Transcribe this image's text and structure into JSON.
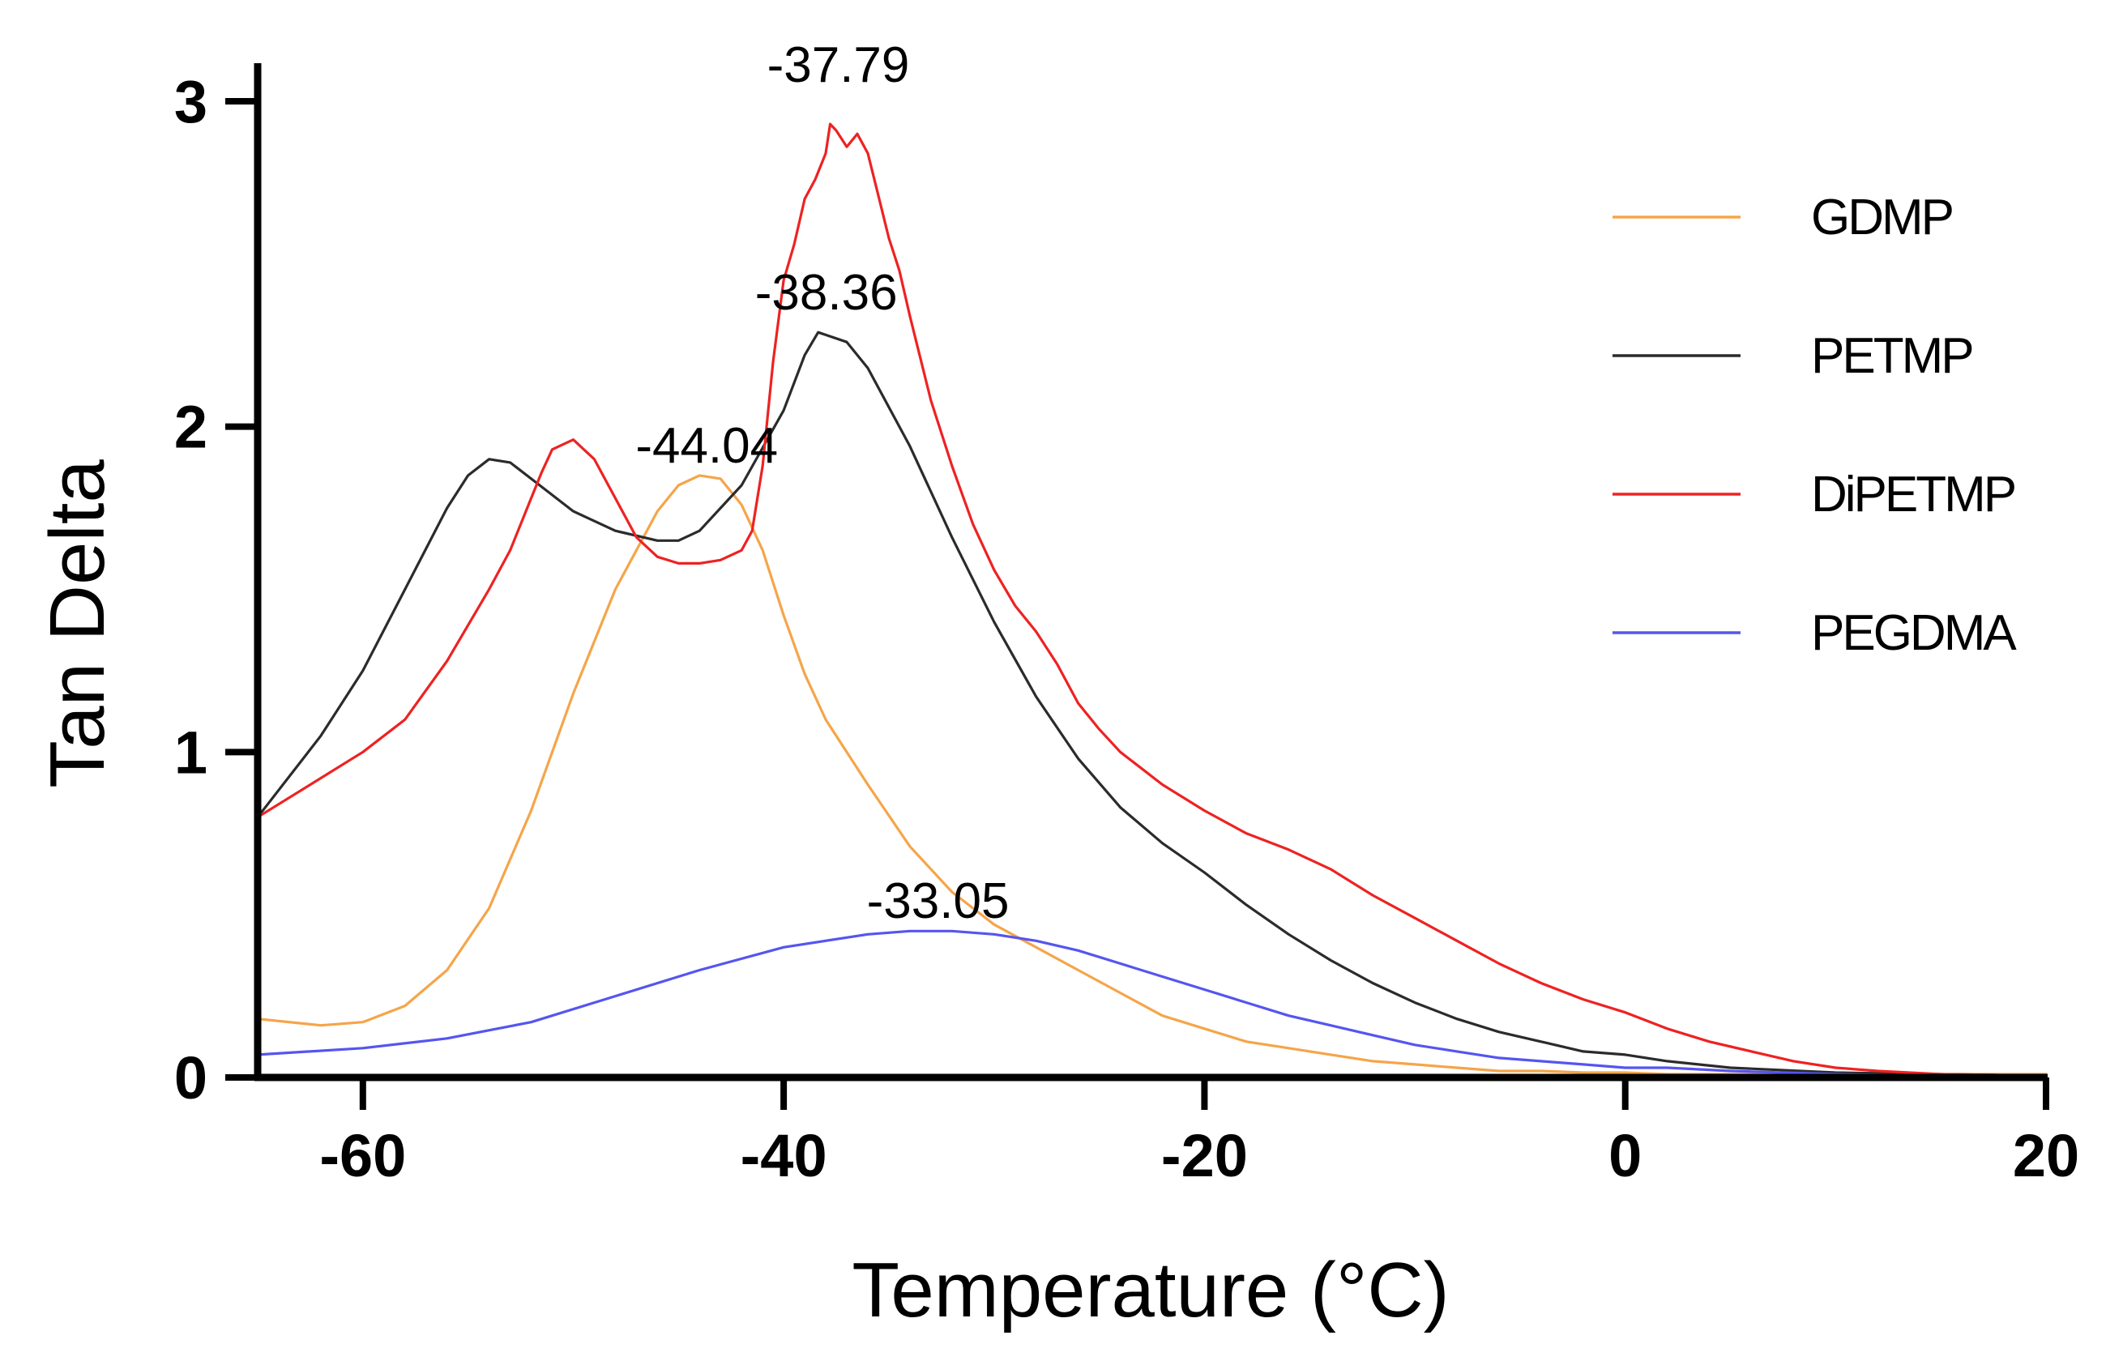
{
  "chart_data": {
    "type": "line",
    "title": "",
    "xlabel": "Temperature (°C)",
    "ylabel": "Tan Delta",
    "xlim": [
      -65,
      20
    ],
    "ylim": [
      0,
      3.1
    ],
    "xticks": [
      -60,
      -40,
      -20,
      0,
      20
    ],
    "xtick_labels": [
      "-60",
      "-40",
      "-20",
      "0",
      "20"
    ],
    "yticks": [
      0,
      1,
      2,
      3
    ],
    "ytick_labels": [
      "0",
      "1",
      "2",
      "3"
    ],
    "grid": false,
    "legend_position": "right",
    "series": [
      {
        "name": "GDMP",
        "color": "#f5a54a",
        "x": [
          -65,
          -62,
          -60,
          -58,
          -56,
          -54,
          -52,
          -50,
          -48,
          -47,
          -46,
          -45,
          -44,
          -43,
          -42,
          -41,
          -40,
          -39,
          -38,
          -36,
          -34,
          -32,
          -30,
          -28,
          -26,
          -24,
          -22,
          -20,
          -18,
          -16,
          -14,
          -12,
          -10,
          -8,
          -6,
          -4,
          -2,
          0,
          2,
          5,
          10,
          15,
          20
        ],
        "y": [
          0.18,
          0.16,
          0.17,
          0.22,
          0.33,
          0.52,
          0.82,
          1.18,
          1.5,
          1.62,
          1.74,
          1.82,
          1.85,
          1.84,
          1.76,
          1.62,
          1.42,
          1.24,
          1.1,
          0.9,
          0.71,
          0.57,
          0.47,
          0.4,
          0.33,
          0.26,
          0.19,
          0.15,
          0.11,
          0.09,
          0.07,
          0.05,
          0.04,
          0.03,
          0.02,
          0.02,
          0.015,
          0.015,
          0.01,
          0.01,
          0.01,
          0.01,
          0.01
        ]
      },
      {
        "name": "PETMP",
        "color": "#2b2b2b",
        "x": [
          -65,
          -62,
          -60,
          -58,
          -56,
          -55,
          -54,
          -53,
          -52,
          -50,
          -48,
          -46,
          -45,
          -44,
          -42,
          -40,
          -39,
          -38.36,
          -37,
          -36,
          -34,
          -32,
          -30,
          -28,
          -26,
          -24,
          -22,
          -20,
          -18,
          -16,
          -14,
          -12,
          -10,
          -8,
          -6,
          -4,
          -2,
          0,
          2,
          5,
          10,
          15,
          20
        ],
        "y": [
          0.8,
          1.05,
          1.25,
          1.5,
          1.75,
          1.85,
          1.9,
          1.89,
          1.84,
          1.74,
          1.68,
          1.65,
          1.65,
          1.68,
          1.82,
          2.05,
          2.22,
          2.29,
          2.26,
          2.18,
          1.94,
          1.66,
          1.4,
          1.17,
          0.98,
          0.83,
          0.72,
          0.63,
          0.53,
          0.44,
          0.36,
          0.29,
          0.23,
          0.18,
          0.14,
          0.11,
          0.08,
          0.07,
          0.05,
          0.03,
          0.015,
          0.01,
          0.005
        ]
      },
      {
        "name": "DiPETMP",
        "color": "#ee2222",
        "x": [
          -65,
          -62,
          -60,
          -58,
          -56,
          -54,
          -53,
          -52,
          -51.5,
          -51,
          -50,
          -49,
          -48,
          -47,
          -46,
          -45,
          -44,
          -43,
          -42,
          -41.5,
          -41,
          -40.5,
          -40,
          -39.5,
          -39,
          -38.5,
          -38,
          -37.79,
          -37.5,
          -37,
          -36.5,
          -36,
          -35.5,
          -35,
          -34.5,
          -34,
          -33,
          -32,
          -31,
          -30,
          -29,
          -28,
          -27,
          -26,
          -25,
          -24,
          -22,
          -20,
          -18,
          -16,
          -14,
          -12,
          -10,
          -8,
          -6,
          -4,
          -2,
          0,
          2,
          4,
          6,
          8,
          10,
          12,
          15,
          20
        ],
        "y": [
          0.8,
          0.92,
          1.0,
          1.1,
          1.28,
          1.5,
          1.62,
          1.78,
          1.86,
          1.93,
          1.96,
          1.9,
          1.78,
          1.66,
          1.6,
          1.58,
          1.58,
          1.59,
          1.62,
          1.68,
          1.88,
          2.2,
          2.45,
          2.56,
          2.7,
          2.76,
          2.84,
          2.93,
          2.91,
          2.86,
          2.9,
          2.84,
          2.71,
          2.58,
          2.48,
          2.34,
          2.08,
          1.88,
          1.7,
          1.56,
          1.45,
          1.37,
          1.27,
          1.15,
          1.07,
          1.0,
          0.9,
          0.82,
          0.75,
          0.7,
          0.64,
          0.56,
          0.49,
          0.42,
          0.35,
          0.29,
          0.24,
          0.2,
          0.15,
          0.11,
          0.08,
          0.05,
          0.03,
          0.02,
          0.01,
          0.005
        ]
      },
      {
        "name": "PEGDMA",
        "color": "#5555f0",
        "x": [
          -65,
          -60,
          -56,
          -52,
          -48,
          -44,
          -40,
          -36,
          -34,
          -33.05,
          -32,
          -30,
          -28,
          -26,
          -24,
          -22,
          -20,
          -18,
          -16,
          -14,
          -12,
          -10,
          -8,
          -6,
          -4,
          -2,
          0,
          2,
          5,
          10,
          15,
          20
        ],
        "y": [
          0.07,
          0.09,
          0.12,
          0.17,
          0.25,
          0.33,
          0.4,
          0.44,
          0.45,
          0.45,
          0.45,
          0.44,
          0.42,
          0.39,
          0.35,
          0.31,
          0.27,
          0.23,
          0.19,
          0.16,
          0.13,
          0.1,
          0.08,
          0.06,
          0.05,
          0.04,
          0.03,
          0.03,
          0.02,
          0.01,
          0.005,
          0.002
        ]
      }
    ],
    "annotations": [
      {
        "text": "-37.79",
        "x": -37.79,
        "y": 3.06
      },
      {
        "text": "-38.36",
        "x": -38.36,
        "y": 2.36
      },
      {
        "text": "-44.04",
        "x": -44.04,
        "y": 1.89
      },
      {
        "text": "-33.05",
        "x": -33.05,
        "y": 0.49
      }
    ]
  }
}
